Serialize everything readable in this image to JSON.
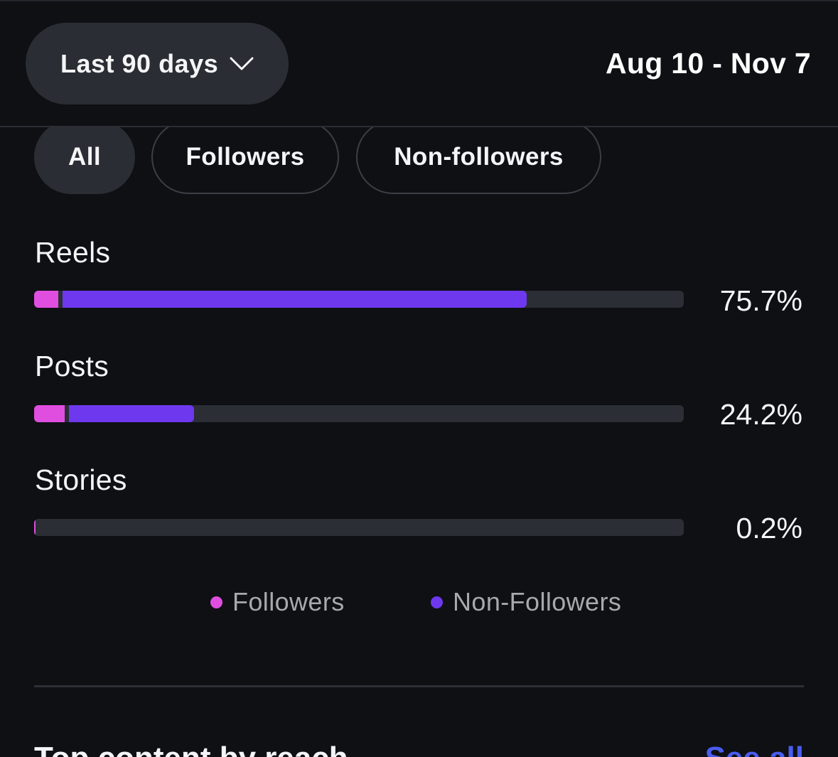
{
  "header": {
    "range_label": "Last 90 days",
    "date_range": "Aug 10 - Nov 7"
  },
  "filters": [
    {
      "label": "All",
      "active": true
    },
    {
      "label": "Followers",
      "active": false
    },
    {
      "label": "Non-followers",
      "active": false
    }
  ],
  "breakdown": [
    {
      "label": "Reels",
      "percent": "75.7%",
      "value": 75.7
    },
    {
      "label": "Posts",
      "percent": "24.2%",
      "value": 24.2
    },
    {
      "label": "Stories",
      "percent": "0.2%",
      "value": 0.2
    }
  ],
  "legend": [
    {
      "label": "Followers",
      "color": "#e04ee0"
    },
    {
      "label": "Non-Followers",
      "color": "#6e38ee"
    }
  ],
  "colors": {
    "background": "#0e1014",
    "followers": "#e04ee0",
    "non_followers": "#6e38ee",
    "track": "#2b2e35",
    "link": "#4a5cf0"
  },
  "next_section": {
    "title": "Top content by reach",
    "link": "See all"
  }
}
